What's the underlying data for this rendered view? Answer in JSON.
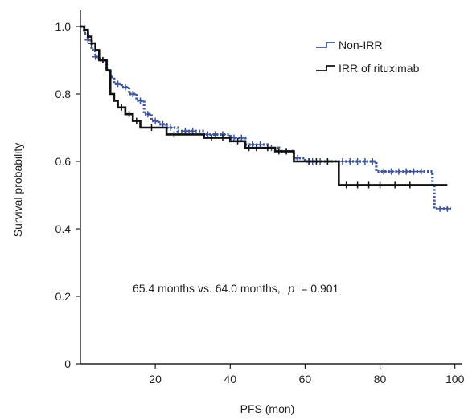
{
  "chart_data": {
    "type": "line",
    "title": "",
    "xlabel": "PFS (mon)",
    "ylabel": "Survival probability",
    "xlim": [
      0,
      102
    ],
    "ylim": [
      0,
      1.05
    ],
    "xticks": [
      20,
      40,
      60,
      80,
      100
    ],
    "xtick_labels": [
      "20",
      "40",
      "60",
      "80",
      "100"
    ],
    "yticks": [
      0,
      0.2,
      0.4,
      0.6,
      0.8,
      1.0
    ],
    "ytick_labels": [
      "0",
      "0.2",
      "0.4",
      "0.6",
      "0.8",
      "1.0"
    ],
    "grid": false,
    "legend_position": "top-right",
    "annotation": {
      "text_before": "65.4 months vs. 64.0 months,",
      "p_symbol": "p",
      "text_after": "= 0.901"
    },
    "series": [
      {
        "name": "Non-IRR",
        "color": "#3a55a4",
        "style": "dotted-step",
        "points": [
          [
            0,
            1.0
          ],
          [
            1,
            0.98
          ],
          [
            2,
            0.96
          ],
          [
            3,
            0.93
          ],
          [
            4,
            0.91
          ],
          [
            5,
            0.9
          ],
          [
            7,
            0.87
          ],
          [
            8,
            0.85
          ],
          [
            9,
            0.83
          ],
          [
            11,
            0.82
          ],
          [
            13,
            0.8
          ],
          [
            15,
            0.78
          ],
          [
            17,
            0.74
          ],
          [
            19,
            0.72
          ],
          [
            21,
            0.71
          ],
          [
            23,
            0.7
          ],
          [
            26,
            0.69
          ],
          [
            33,
            0.68
          ],
          [
            36,
            0.68
          ],
          [
            40,
            0.67
          ],
          [
            44,
            0.65
          ],
          [
            50,
            0.64
          ],
          [
            53,
            0.63
          ],
          [
            57,
            0.61
          ],
          [
            60,
            0.6
          ],
          [
            78,
            0.6
          ],
          [
            79,
            0.57
          ],
          [
            93,
            0.57
          ],
          [
            94,
            0.53
          ],
          [
            94.5,
            0.46
          ],
          [
            99,
            0.46
          ]
        ],
        "censors": [
          [
            2,
            0.96
          ],
          [
            4,
            0.91
          ],
          [
            6,
            0.9
          ],
          [
            10,
            0.83
          ],
          [
            12,
            0.82
          ],
          [
            14,
            0.8
          ],
          [
            16,
            0.78
          ],
          [
            18,
            0.74
          ],
          [
            20,
            0.72
          ],
          [
            22,
            0.71
          ],
          [
            24,
            0.7
          ],
          [
            28,
            0.69
          ],
          [
            30,
            0.69
          ],
          [
            34,
            0.68
          ],
          [
            36,
            0.68
          ],
          [
            38,
            0.68
          ],
          [
            41,
            0.67
          ],
          [
            43,
            0.67
          ],
          [
            46,
            0.65
          ],
          [
            48,
            0.65
          ],
          [
            51,
            0.64
          ],
          [
            55,
            0.63
          ],
          [
            58,
            0.61
          ],
          [
            62,
            0.6
          ],
          [
            64,
            0.6
          ],
          [
            66,
            0.6
          ],
          [
            70,
            0.6
          ],
          [
            72,
            0.6
          ],
          [
            74,
            0.6
          ],
          [
            76,
            0.6
          ],
          [
            78,
            0.6
          ],
          [
            81,
            0.57
          ],
          [
            83,
            0.57
          ],
          [
            85,
            0.57
          ],
          [
            87,
            0.57
          ],
          [
            89,
            0.57
          ],
          [
            91,
            0.57
          ],
          [
            96,
            0.46
          ],
          [
            98,
            0.46
          ]
        ]
      },
      {
        "name": "IRR of rituximab",
        "color": "#111111",
        "style": "solid-step",
        "points": [
          [
            0,
            1.0
          ],
          [
            1,
            0.99
          ],
          [
            2,
            0.97
          ],
          [
            3,
            0.95
          ],
          [
            4,
            0.93
          ],
          [
            5,
            0.9
          ],
          [
            7,
            0.87
          ],
          [
            8,
            0.8
          ],
          [
            9,
            0.78
          ],
          [
            10,
            0.76
          ],
          [
            12,
            0.74
          ],
          [
            14,
            0.72
          ],
          [
            16,
            0.7
          ],
          [
            23,
            0.68
          ],
          [
            33,
            0.67
          ],
          [
            40,
            0.66
          ],
          [
            44,
            0.64
          ],
          [
            52,
            0.63
          ],
          [
            57,
            0.6
          ],
          [
            60,
            0.6
          ],
          [
            69,
            0.53
          ],
          [
            98,
            0.53
          ]
        ],
        "censors": [
          [
            3,
            0.95
          ],
          [
            6,
            0.9
          ],
          [
            11,
            0.76
          ],
          [
            13,
            0.74
          ],
          [
            15,
            0.72
          ],
          [
            19,
            0.7
          ],
          [
            25,
            0.68
          ],
          [
            35,
            0.67
          ],
          [
            38,
            0.67
          ],
          [
            42,
            0.66
          ],
          [
            45,
            0.64
          ],
          [
            47,
            0.64
          ],
          [
            50,
            0.64
          ],
          [
            53,
            0.63
          ],
          [
            55,
            0.63
          ],
          [
            61,
            0.6
          ],
          [
            63,
            0.6
          ],
          [
            66,
            0.6
          ],
          [
            71,
            0.53
          ],
          [
            74,
            0.53
          ],
          [
            77,
            0.53
          ],
          [
            80,
            0.53
          ],
          [
            84,
            0.53
          ],
          [
            88,
            0.53
          ]
        ]
      }
    ]
  }
}
